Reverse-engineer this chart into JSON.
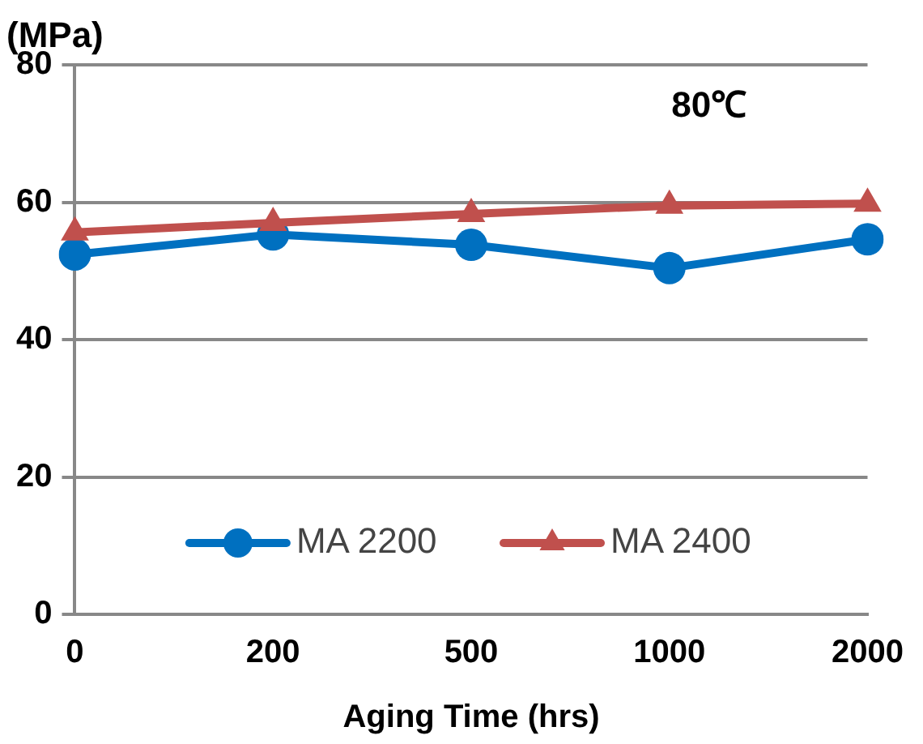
{
  "chart_data": {
    "type": "line",
    "ylabel": "(MPa)",
    "xlabel": "Aging Time (hrs)",
    "annotations": [
      "80℃"
    ],
    "categories": [
      "0",
      "200",
      "500",
      "1000",
      "2000"
    ],
    "series": [
      {
        "name": "MA 2200",
        "color": "#0070c0",
        "marker": "circle",
        "values": [
          52.4,
          55.3,
          53.8,
          50.4,
          54.6
        ]
      },
      {
        "name": "MA 2400",
        "color": "#c0504d",
        "marker": "triangle",
        "values": [
          55.6,
          57,
          58.3,
          59.5,
          59.8
        ]
      }
    ],
    "ylim": [
      0,
      80
    ],
    "yticks": [
      0,
      20,
      40,
      60,
      80
    ],
    "grid": "y",
    "legend": "bottom"
  }
}
